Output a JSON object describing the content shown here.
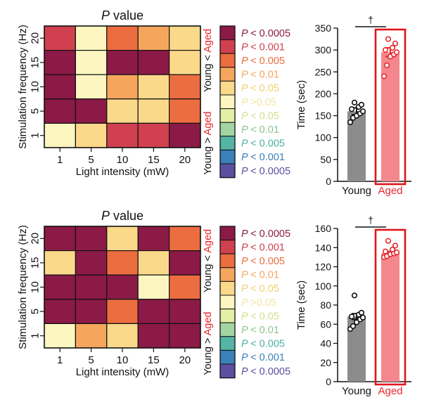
{
  "colors": {
    "levels": [
      "#8b1a47",
      "#d0404e",
      "#ec6d3f",
      "#f6a65c",
      "#fbd98a",
      "#fdf6c0",
      "#e4efa6",
      "#a3d5a3",
      "#55b5a5",
      "#3a80b9",
      "#5d4fa0"
    ],
    "label_colors": [
      "#8b1a47",
      "#d0404e",
      "#ec6d3f",
      "#f6a65c",
      "#f3cf6e",
      "#f4e6a6",
      "#d4df8c",
      "#8cc58c",
      "#4eb0a0",
      "#3a80b9",
      "#5d4fa0"
    ],
    "young_bar": "#8c8c8c",
    "aged_bar": "#f4878d",
    "aged_text": "#e8262c",
    "highlight_box": "#e0151b"
  },
  "chart_data": [
    {
      "type": "heatmap",
      "title_italic": "P",
      "title_rest": " value",
      "xlabel": "Light intensity (mW)",
      "ylabel": "Stimulation frequency (Hz)",
      "x_categories": [
        "1",
        "5",
        "10",
        "15",
        "20"
      ],
      "y_categories": [
        "20",
        "15",
        "10",
        "5",
        "1"
      ],
      "level_matrix": [
        [
          1,
          5,
          2,
          3,
          4
        ],
        [
          0,
          5,
          0,
          0,
          4
        ],
        [
          0,
          5,
          3,
          4,
          2
        ],
        [
          0,
          0,
          4,
          4,
          2
        ],
        [
          5,
          4,
          1,
          1,
          0
        ]
      ]
    },
    {
      "type": "bar",
      "categories": [
        "Young",
        "Aged"
      ],
      "values": [
        160,
        295
      ],
      "errors": [
        8,
        10
      ],
      "points": [
        [
          135,
          145,
          150,
          155,
          160,
          165,
          170,
          175,
          180
        ],
        [
          240,
          265,
          285,
          290,
          295,
          300,
          305,
          315,
          325
        ]
      ],
      "ylabel": "Time (sec)",
      "ylim": [
        0,
        350
      ],
      "yticks": [
        0,
        50,
        100,
        150,
        200,
        250,
        300,
        350
      ],
      "significance": "†"
    },
    {
      "type": "heatmap",
      "title_italic": "P",
      "title_rest": " value",
      "xlabel": "Light intensity (mW)",
      "ylabel": "Stimulation frequency (Hz)",
      "x_categories": [
        "1",
        "5",
        "10",
        "15",
        "20"
      ],
      "y_categories": [
        "20",
        "15",
        "10",
        "5",
        "1"
      ],
      "level_matrix": [
        [
          0,
          0,
          4,
          0,
          2
        ],
        [
          4,
          0,
          2,
          4,
          0
        ],
        [
          0,
          0,
          0,
          5,
          2
        ],
        [
          0,
          0,
          2,
          0,
          0
        ],
        [
          5,
          3,
          4,
          0,
          0
        ]
      ]
    },
    {
      "type": "bar",
      "categories": [
        "Young",
        "Aged"
      ],
      "values": [
        68,
        134
      ],
      "errors": [
        3,
        2
      ],
      "points": [
        [
          55,
          58,
          62,
          65,
          67,
          68,
          70,
          72,
          90
        ],
        [
          130,
          131,
          133,
          134,
          135,
          136,
          138,
          142,
          147
        ]
      ],
      "ylabel": "Time (sec)",
      "ylim": [
        0,
        160
      ],
      "yticks": [
        0,
        20,
        40,
        60,
        80,
        100,
        120,
        140,
        160
      ],
      "significance": "†"
    }
  ],
  "legend": {
    "italic_p": "P",
    "levels": [
      "< 0.0005",
      "< 0.001",
      "< 0.005",
      "< 0.01",
      "< 0.05",
      ">0.05",
      "< 0.05",
      "< 0.01",
      "< 0.005",
      "< 0.001",
      "< 0.0005"
    ],
    "side_top_left": "Young < ",
    "side_top_right": "Aged",
    "side_bottom_left": "Young > ",
    "side_bottom_right": "Aged"
  }
}
